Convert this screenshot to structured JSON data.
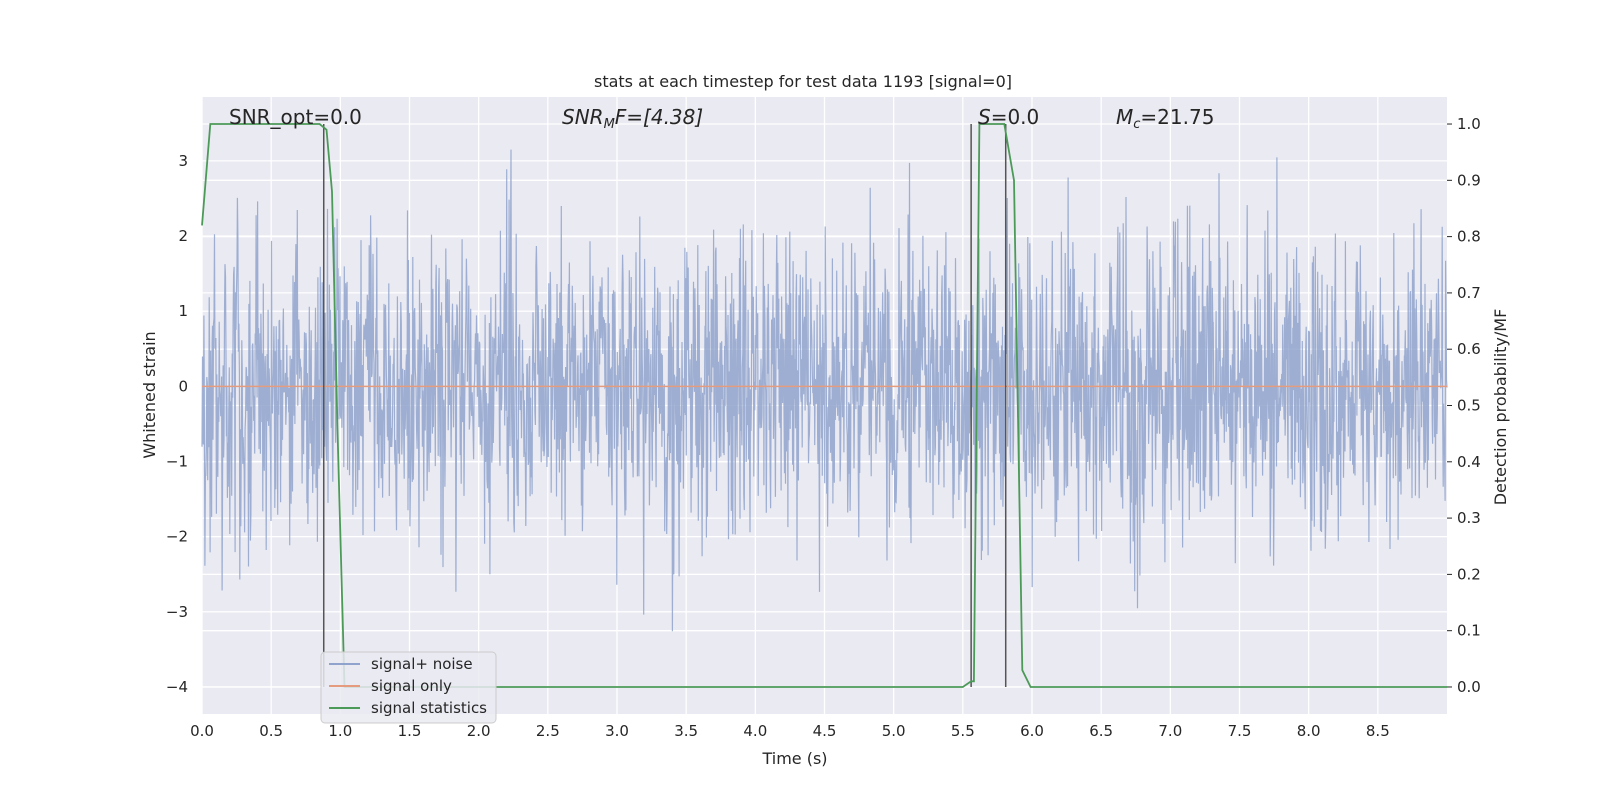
{
  "chart_data": {
    "type": "line",
    "title": "stats at each timestep for test data 1193 [signal=0]",
    "xlabel": "Time (s)",
    "ylabel": "Whitened strain",
    "ylabel_right": "Detection probability/MF",
    "xlim": [
      0,
      9.0
    ],
    "ylim": [
      -4.36,
      3.85
    ],
    "ylim_right": [
      -0.048,
      1.048
    ],
    "x_ticks": [
      "0.0",
      "0.5",
      "1.0",
      "1.5",
      "2.0",
      "2.5",
      "3.0",
      "3.5",
      "4.0",
      "4.5",
      "5.0",
      "5.5",
      "6.0",
      "6.5",
      "7.0",
      "7.5",
      "8.0",
      "8.5"
    ],
    "y_ticks": [
      {
        "value": 3,
        "label": "3"
      },
      {
        "value": 2,
        "label": "2"
      },
      {
        "value": 1,
        "label": "1"
      },
      {
        "value": 0,
        "label": "0"
      },
      {
        "value": -1,
        "label": "−1"
      },
      {
        "value": -2,
        "label": "−2"
      },
      {
        "value": -3,
        "label": "−3"
      },
      {
        "value": -4,
        "label": "−4"
      }
    ],
    "y_right_ticks": [
      "0.0",
      "0.1",
      "0.2",
      "0.3",
      "0.4",
      "0.5",
      "0.6",
      "0.7",
      "0.8",
      "0.9",
      "1.0"
    ],
    "annotations": {
      "snr_opt": "SNR_opt=0.0",
      "snr_mf_main": "SNR",
      "snr_mf_sub": "M",
      "snr_mf_rest": "F=[4.38]",
      "s_main": "S",
      "s_rest": "=0.0",
      "mc_main": "M",
      "mc_sub": "c",
      "mc_rest": "=21.75"
    },
    "grid": true,
    "legend_position": "lower-left",
    "series": [
      {
        "name": "signal+ noise",
        "color": "#8fa3cc",
        "description": "whitened strain noise, roughly Gaussian, extremes between -4.0 and 3.5",
        "noise_range": [
          -4.0,
          3.5
        ]
      },
      {
        "name": "signal only",
        "color": "#e59c7e",
        "x": [
          0,
          9.0
        ],
        "y": [
          0,
          0
        ]
      },
      {
        "name": "signal statistics",
        "color": "#4c9a58",
        "axis": "right",
        "x": [
          0.0,
          0.06,
          0.1,
          0.15,
          0.85,
          0.9,
          0.94,
          0.98,
          1.03,
          5.5,
          5.56,
          5.58,
          5.62,
          5.8,
          5.87,
          5.93,
          5.99,
          9.0
        ],
        "y": [
          0.82,
          1.0,
          1.0,
          1.0,
          1.0,
          0.99,
          0.88,
          0.45,
          0.0,
          0.0,
          0.01,
          0.01,
          1.0,
          1.0,
          0.9,
          0.03,
          0.0,
          0.0
        ]
      }
    ],
    "vertical_markers": [
      {
        "x": 0.88,
        "y_top_right": 1.0,
        "y_bottom_right": 0.0
      },
      {
        "x": 5.56,
        "y_top_right": 1.0,
        "y_bottom_right": 0.0
      },
      {
        "x": 5.81,
        "y_top_right": 1.0,
        "y_bottom_right": 0.0
      }
    ],
    "colors": {
      "plot_background": "#eaeaf2",
      "grid": "#ffffff",
      "marker": "#555555"
    }
  }
}
